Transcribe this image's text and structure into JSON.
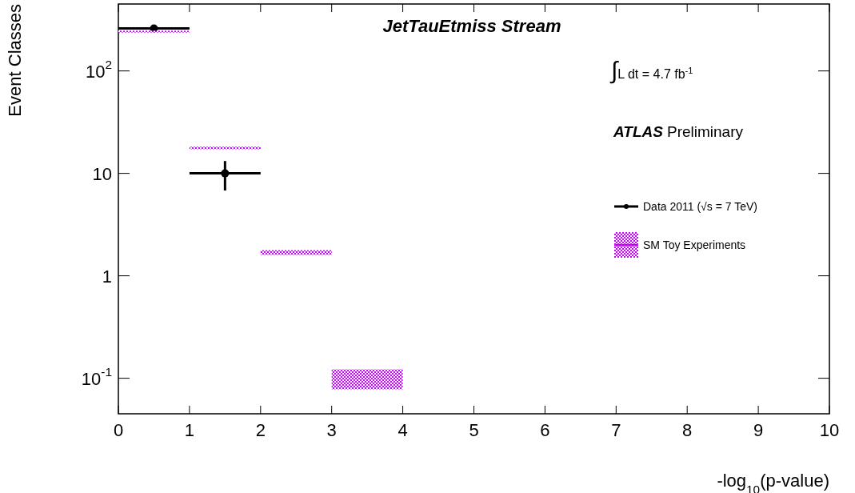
{
  "chart_data": {
    "type": "scatter",
    "xlabel": "-log$_{10}$(p-value)",
    "ylabel": "Event Classes",
    "log": "y",
    "legend": "right",
    "marker": "circle",
    "xlim": [
      0,
      10
    ],
    "xticks": [
      0,
      1,
      2,
      3,
      4,
      5,
      6,
      7,
      8,
      9,
      10
    ],
    "ylim": [
      0.045,
      450
    ],
    "yticks": [
      {
        "value": 0.1,
        "label": "10$^{-1}$"
      },
      1,
      10,
      {
        "value": 100,
        "label": "10$^{2}$"
      }
    ],
    "series": [
      {
        "name": "Data 2011 (√s = 7 TeV)",
        "color": "#000000",
        "x": [
          0.5,
          1.5
        ],
        "values": [
          260,
          10
        ],
        "errors": [
          null,
          [
            6.8,
            13.2
          ]
        ],
        "xerrors": [
          0.5,
          0.5
        ]
      },
      {
        "name": "SM Toy Experiments",
        "type": "bar",
        "color": "#cc00ff",
        "x": [
          0.5,
          1.5,
          2.5,
          3.5
        ],
        "base": [
          237,
          17.2,
          1.6,
          0.078
        ],
        "values": [
          10,
          1,
          0.18,
          0.044
        ]
      }
    ],
    "annotations": [
      "JetTauEtmiss Stream",
      "∫L dt = 4.7 fb$^{-1}$",
      "ATLAS",
      "Preliminary"
    ]
  }
}
